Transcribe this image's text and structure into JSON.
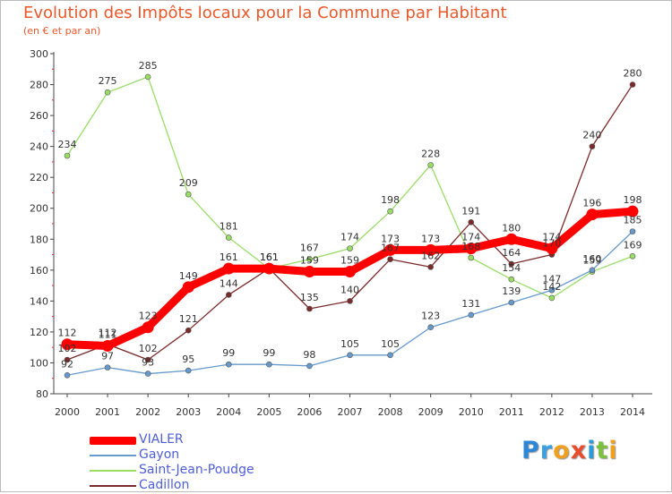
{
  "title": "Evolution des Impôts locaux pour la Commune par Habitant",
  "subtitle": "(en € et par an)",
  "logo_letters": [
    "P",
    "r",
    "o",
    "x",
    "i",
    "t",
    "i"
  ],
  "chart_data": {
    "type": "line",
    "title": "Evolution des Impôts locaux pour la Commune par Habitant",
    "subtitle": "(en € et par an)",
    "xlabel": "",
    "ylabel": "",
    "ylim": [
      80,
      300
    ],
    "yticks": [
      80,
      100,
      120,
      140,
      160,
      180,
      200,
      220,
      240,
      260,
      280,
      300
    ],
    "grid": false,
    "legend_position": "bottom-left",
    "categories": [
      "2000",
      "2001",
      "2002",
      "2003",
      "2004",
      "2005",
      "2006",
      "2007",
      "2008",
      "2009",
      "2010",
      "2011",
      "2012",
      "2013",
      "2014"
    ],
    "series": [
      {
        "name": "VIALER",
        "color": "#ff0000",
        "values": [
          112,
          111,
          123,
          149,
          161,
          161,
          159,
          159,
          173,
          173,
          174,
          180,
          174,
          196,
          198
        ]
      },
      {
        "name": "Gayon",
        "color": "#6699cc",
        "values": [
          92,
          97,
          93,
          95,
          99,
          99,
          98,
          105,
          105,
          123,
          131,
          139,
          147,
          160,
          185
        ]
      },
      {
        "name": "Saint-Jean-Poudge",
        "color": "#99dd66",
        "values": [
          234,
          275,
          285,
          209,
          181,
          161,
          167,
          174,
          198,
          228,
          168,
          154,
          142,
          159,
          169
        ]
      },
      {
        "name": "Cadillon",
        "color": "#7a2a2a",
        "values": [
          102,
          112,
          102,
          121,
          144,
          161,
          135,
          140,
          167,
          162,
          191,
          164,
          170,
          240,
          280
        ]
      }
    ]
  }
}
